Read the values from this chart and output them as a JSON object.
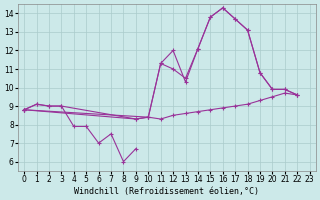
{
  "xlabel": "Windchill (Refroidissement éolien,°C)",
  "xlim": [
    -0.5,
    23.5
  ],
  "ylim": [
    5.5,
    14.5
  ],
  "xticks": [
    0,
    1,
    2,
    3,
    4,
    5,
    6,
    7,
    8,
    9,
    10,
    11,
    12,
    13,
    14,
    15,
    16,
    17,
    18,
    19,
    20,
    21,
    22,
    23
  ],
  "yticks": [
    6,
    7,
    8,
    9,
    10,
    11,
    12,
    13,
    14
  ],
  "background_color": "#cce9e9",
  "grid_color": "#aacccc",
  "line_color": "#993399",
  "lines": [
    {
      "x": [
        0,
        1,
        2,
        3,
        4,
        5,
        6,
        7,
        8,
        9
      ],
      "y": [
        8.8,
        9.1,
        9.0,
        9.0,
        7.9,
        7.9,
        7.0,
        7.5,
        6.0,
        6.7
      ]
    },
    {
      "x": [
        0,
        1,
        2,
        3,
        9,
        10,
        11,
        12,
        13,
        14,
        15,
        16,
        17,
        18,
        19,
        20,
        21,
        22
      ],
      "y": [
        8.8,
        9.1,
        9.0,
        9.0,
        8.3,
        8.4,
        11.3,
        12.0,
        10.3,
        12.1,
        13.8,
        14.3,
        13.7,
        13.1,
        10.8,
        9.9,
        9.9,
        9.6
      ]
    },
    {
      "x": [
        0,
        10,
        11,
        12,
        13,
        14,
        15,
        16,
        17,
        18,
        19,
        20,
        21,
        22
      ],
      "y": [
        8.8,
        8.4,
        11.3,
        11.0,
        10.5,
        12.1,
        13.8,
        14.3,
        13.7,
        13.1,
        10.8,
        9.9,
        9.9,
        9.6
      ]
    },
    {
      "x": [
        0,
        9,
        10,
        11,
        12,
        13,
        14,
        15,
        16,
        17,
        18,
        19,
        20,
        21,
        22
      ],
      "y": [
        8.8,
        8.3,
        8.4,
        8.3,
        8.5,
        8.6,
        8.7,
        8.8,
        8.9,
        9.0,
        9.1,
        9.3,
        9.5,
        9.7,
        9.6
      ]
    }
  ],
  "figsize": [
    3.2,
    2.0
  ],
  "dpi": 100
}
